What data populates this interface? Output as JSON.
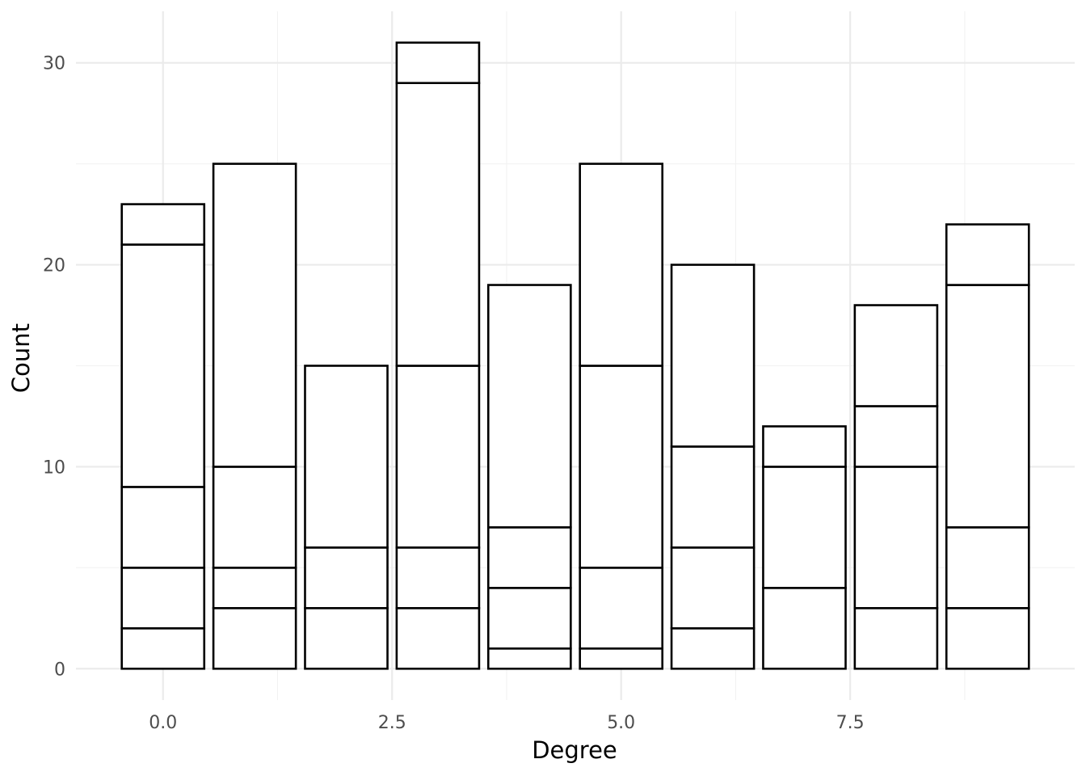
{
  "chart_data": {
    "type": "bar",
    "stacked": true,
    "title": "",
    "xlabel": "Degree",
    "ylabel": "Count",
    "xlim": [
      -0.95,
      9.95
    ],
    "ylim": [
      -1.55,
      32.55
    ],
    "x_breaks": [
      0.0,
      2.5,
      5.0,
      7.5
    ],
    "x_tick_labels": [
      "0.0",
      "2.5",
      "5.0",
      "7.5"
    ],
    "y_breaks": [
      0,
      10,
      20,
      30
    ],
    "y_tick_labels": [
      "0",
      "10",
      "20",
      "30"
    ],
    "bar_width": 0.9,
    "fill": "#ffffff",
    "outline": "#000000",
    "grid": true,
    "legend": "none",
    "x": [
      0,
      1,
      2,
      3,
      4,
      5,
      6,
      7,
      8,
      9
    ],
    "totals": [
      23,
      25,
      15,
      31,
      19,
      25,
      20,
      12,
      18,
      22
    ],
    "stack_boundaries": [
      [
        0,
        2,
        5,
        9,
        21,
        23
      ],
      [
        0,
        3,
        5,
        10,
        25
      ],
      [
        0,
        3,
        6,
        15
      ],
      [
        0,
        3,
        6,
        15,
        29,
        31
      ],
      [
        0,
        1,
        4,
        7,
        19
      ],
      [
        0,
        1,
        5,
        15,
        25
      ],
      [
        0,
        2,
        6,
        11,
        20
      ],
      [
        0,
        4,
        10,
        12
      ],
      [
        0,
        3,
        10,
        13,
        18
      ],
      [
        0,
        3,
        7,
        19,
        22
      ]
    ]
  }
}
